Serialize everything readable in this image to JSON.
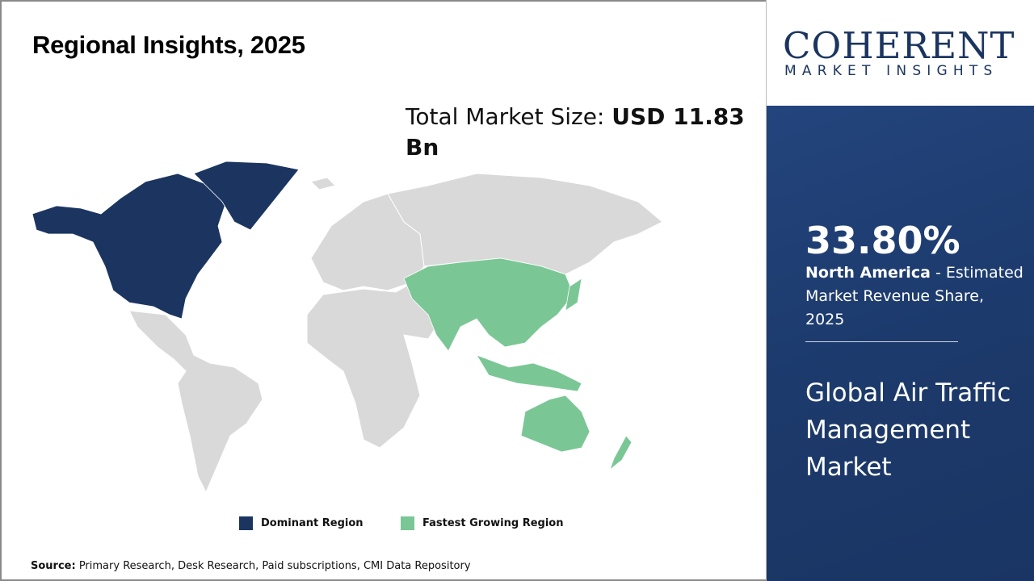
{
  "title": "Regional Insights, 2025",
  "market_size": {
    "label": "Total Market Size: ",
    "value": "USD 11.83 Bn"
  },
  "legend": [
    {
      "label": "Dominant Region",
      "color": "#1b3560"
    },
    {
      "label": "Fastest Growing Region",
      "color": "#7ac795"
    }
  ],
  "map": {
    "dominant_region": "North America",
    "fastest_growing_region": "Asia Pacific",
    "other_color": "#d9d9d9"
  },
  "source": {
    "label": "Source:",
    "text": " Primary Research, Desk Research, Paid subscriptions, CMI Data Repository"
  },
  "logo": {
    "line1": "COHERENT",
    "line2": "MARKET INSIGHTS"
  },
  "highlight": {
    "percent": "33.80%",
    "region": "North America",
    "text": " - Estimated Market Revenue Share, 2025"
  },
  "market_name": "Global Air Traffic Management Market"
}
